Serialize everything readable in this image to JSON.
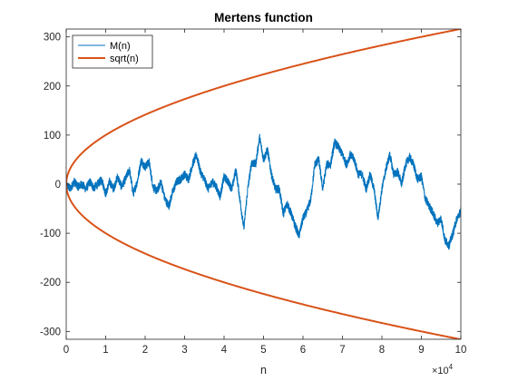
{
  "chart_data": {
    "type": "line",
    "title": "Mertens function",
    "xlabel": "n",
    "ylabel": "",
    "x_exponent_base": "×10",
    "x_exponent_power": "4",
    "x_tick_labels": [
      "0",
      "1",
      "2",
      "3",
      "4",
      "5",
      "6",
      "7",
      "8",
      "9",
      "10"
    ],
    "y_tick_labels": [
      "-300",
      "-200",
      "-100",
      "0",
      "100",
      "200",
      "300"
    ],
    "xlim": [
      0,
      100000
    ],
    "ylim": [
      -316,
      316
    ],
    "grid": false,
    "legend_position": "top-left",
    "series": [
      {
        "name": "M(n)",
        "color": "#0072BD",
        "approx_points": [
          [
            0,
            0
          ],
          [
            1000,
            -10
          ],
          [
            2000,
            5
          ],
          [
            3000,
            -5
          ],
          [
            4000,
            0
          ],
          [
            5000,
            -10
          ],
          [
            6000,
            5
          ],
          [
            7000,
            -8
          ],
          [
            8000,
            0
          ],
          [
            9000,
            10
          ],
          [
            10000,
            -20
          ],
          [
            11000,
            5
          ],
          [
            12000,
            -10
          ],
          [
            13000,
            15
          ],
          [
            14000,
            -5
          ],
          [
            15000,
            10
          ],
          [
            16000,
            30
          ],
          [
            17000,
            -20
          ],
          [
            18000,
            5
          ],
          [
            19000,
            48
          ],
          [
            20000,
            35
          ],
          [
            21000,
            45
          ],
          [
            22000,
            -5
          ],
          [
            23000,
            -15
          ],
          [
            24000,
            5
          ],
          [
            25000,
            -30
          ],
          [
            26000,
            -45
          ],
          [
            27000,
            -15
          ],
          [
            28000,
            5
          ],
          [
            29000,
            10
          ],
          [
            30000,
            20
          ],
          [
            31000,
            10
          ],
          [
            32000,
            40
          ],
          [
            33000,
            60
          ],
          [
            34000,
            25
          ],
          [
            35000,
            10
          ],
          [
            36000,
            -10
          ],
          [
            37000,
            5
          ],
          [
            38000,
            -5
          ],
          [
            39000,
            -25
          ],
          [
            40000,
            15
          ],
          [
            41000,
            5
          ],
          [
            42000,
            -10
          ],
          [
            43000,
            30
          ],
          [
            44000,
            -30
          ],
          [
            45000,
            -90
          ],
          [
            46000,
            -10
          ],
          [
            47000,
            45
          ],
          [
            48000,
            40
          ],
          [
            49000,
            95
          ],
          [
            50000,
            50
          ],
          [
            51000,
            70
          ],
          [
            52000,
            20
          ],
          [
            53000,
            -10
          ],
          [
            54000,
            -10
          ],
          [
            55000,
            -60
          ],
          [
            56000,
            -40
          ],
          [
            57000,
            -60
          ],
          [
            58000,
            -85
          ],
          [
            59000,
            -105
          ],
          [
            60000,
            -70
          ],
          [
            61000,
            -55
          ],
          [
            62000,
            -30
          ],
          [
            63000,
            40
          ],
          [
            64000,
            50
          ],
          [
            65000,
            -10
          ],
          [
            66000,
            40
          ],
          [
            67000,
            40
          ],
          [
            68000,
            85
          ],
          [
            69000,
            75
          ],
          [
            70000,
            60
          ],
          [
            71000,
            40
          ],
          [
            72000,
            60
          ],
          [
            73000,
            50
          ],
          [
            74000,
            20
          ],
          [
            75000,
            20
          ],
          [
            76000,
            -10
          ],
          [
            77000,
            20
          ],
          [
            78000,
            -10
          ],
          [
            79000,
            -70
          ],
          [
            80000,
            -10
          ],
          [
            81000,
            30
          ],
          [
            82000,
            60
          ],
          [
            83000,
            20
          ],
          [
            84000,
            25
          ],
          [
            85000,
            0
          ],
          [
            86000,
            40
          ],
          [
            87000,
            55
          ],
          [
            88000,
            40
          ],
          [
            89000,
            10
          ],
          [
            90000,
            15
          ],
          [
            91000,
            -30
          ],
          [
            92000,
            -45
          ],
          [
            93000,
            -60
          ],
          [
            94000,
            -80
          ],
          [
            95000,
            -70
          ],
          [
            96000,
            -115
          ],
          [
            97000,
            -125
          ],
          [
            98000,
            -100
          ],
          [
            99000,
            -70
          ],
          [
            100000,
            -55
          ]
        ]
      },
      {
        "name": "sqrt(n)",
        "color": "#D95319",
        "function": "±sqrt(n)"
      }
    ]
  }
}
